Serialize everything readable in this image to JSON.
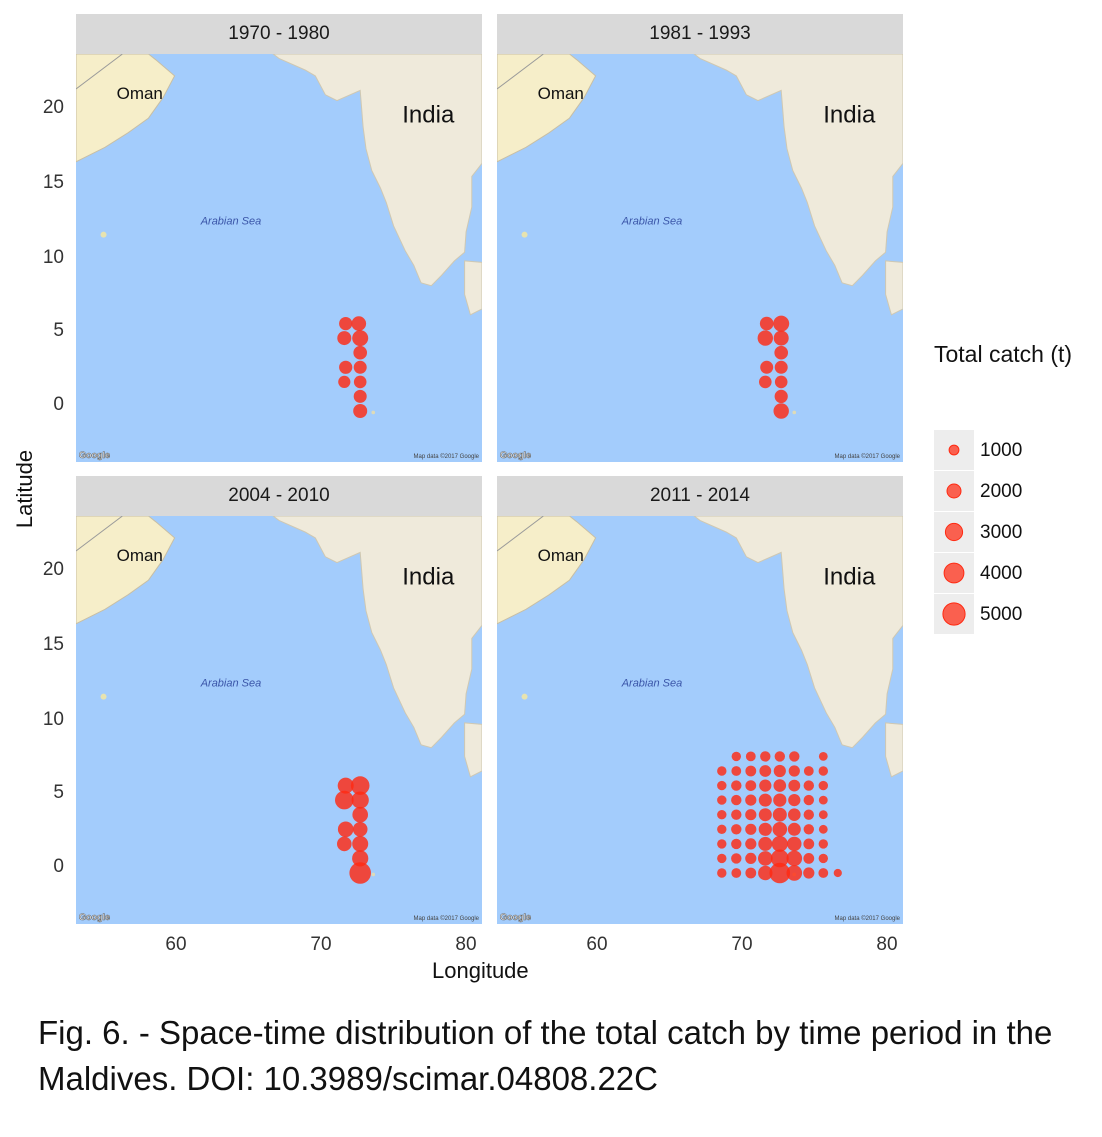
{
  "panels": [
    {
      "title": "1970 - 1980"
    },
    {
      "title": "1981 - 1993"
    },
    {
      "title": "2004 - 2010"
    },
    {
      "title": "2011 - 2014"
    }
  ],
  "map_labels": {
    "oman": "Oman",
    "india": "India",
    "arabian_sea": "Arabian Sea",
    "google": "Google",
    "map_data": "Map data ©2017 Google"
  },
  "y_ticks": [
    "20",
    "15",
    "10",
    "5",
    "0"
  ],
  "x_ticks": [
    "60",
    "70",
    "80"
  ],
  "axes": {
    "x_title": "Longitude",
    "y_title": "Latitude"
  },
  "legend": {
    "title": "Total catch (t)",
    "items": [
      {
        "label": "1000",
        "value": 1000
      },
      {
        "label": "2000",
        "value": 2000
      },
      {
        "label": "3000",
        "value": 3000
      },
      {
        "label": "4000",
        "value": 4000
      },
      {
        "label": "5000",
        "value": 5000
      }
    ]
  },
  "caption": "Fig. 6. - Space-time distribution of the total catch by time period in the Maldives. DOI: 10.3989/scimar.04808.22C",
  "colors": {
    "water": "#a3ccfc",
    "land": "#efeadb",
    "desert": "#f6eec9",
    "point": "#ff2a12",
    "strip": "#d9d9d9"
  },
  "chart_data": {
    "type": "scatter",
    "xlim": [
      53,
      81
    ],
    "ylim": [
      -4,
      24
    ],
    "xlabel": "Longitude",
    "ylabel": "Latitude",
    "size_variable": "Total catch (t)",
    "series": [
      {
        "name": "1970 - 1980",
        "points": [
          {
            "x": 71.6,
            "y": 5.5,
            "v": 1800
          },
          {
            "x": 72.5,
            "y": 5.5,
            "v": 2200
          },
          {
            "x": 71.5,
            "y": 4.5,
            "v": 2000
          },
          {
            "x": 72.6,
            "y": 4.5,
            "v": 2600
          },
          {
            "x": 72.6,
            "y": 3.5,
            "v": 1900
          },
          {
            "x": 71.6,
            "y": 2.5,
            "v": 1800
          },
          {
            "x": 72.6,
            "y": 2.5,
            "v": 1700
          },
          {
            "x": 71.5,
            "y": 1.5,
            "v": 1500
          },
          {
            "x": 72.6,
            "y": 1.5,
            "v": 1600
          },
          {
            "x": 72.6,
            "y": 0.5,
            "v": 1700
          },
          {
            "x": 72.6,
            "y": -0.5,
            "v": 2000
          }
        ]
      },
      {
        "name": "1981 - 1993",
        "points": [
          {
            "x": 71.6,
            "y": 5.5,
            "v": 1900
          },
          {
            "x": 72.6,
            "y": 5.5,
            "v": 2600
          },
          {
            "x": 71.5,
            "y": 4.5,
            "v": 2400
          },
          {
            "x": 72.6,
            "y": 4.5,
            "v": 2300
          },
          {
            "x": 72.6,
            "y": 3.5,
            "v": 1900
          },
          {
            "x": 71.6,
            "y": 2.5,
            "v": 1700
          },
          {
            "x": 72.6,
            "y": 2.5,
            "v": 1700
          },
          {
            "x": 71.5,
            "y": 1.5,
            "v": 1600
          },
          {
            "x": 72.6,
            "y": 1.5,
            "v": 1600
          },
          {
            "x": 72.6,
            "y": 0.5,
            "v": 1800
          },
          {
            "x": 72.6,
            "y": -0.5,
            "v": 2400
          }
        ]
      },
      {
        "name": "2004 - 2010",
        "points": [
          {
            "x": 71.6,
            "y": 5.5,
            "v": 2600
          },
          {
            "x": 72.6,
            "y": 5.5,
            "v": 3500
          },
          {
            "x": 71.5,
            "y": 4.5,
            "v": 3500
          },
          {
            "x": 72.6,
            "y": 4.5,
            "v": 3000
          },
          {
            "x": 72.6,
            "y": 3.5,
            "v": 2500
          },
          {
            "x": 71.6,
            "y": 2.5,
            "v": 2500
          },
          {
            "x": 72.6,
            "y": 2.5,
            "v": 2200
          },
          {
            "x": 71.5,
            "y": 1.5,
            "v": 2200
          },
          {
            "x": 72.6,
            "y": 1.5,
            "v": 2600
          },
          {
            "x": 72.6,
            "y": 0.5,
            "v": 2700
          },
          {
            "x": 72.6,
            "y": -0.5,
            "v": 4800
          }
        ]
      },
      {
        "name": "2011 - 2014",
        "points": [
          {
            "x": 69.5,
            "y": 7.5,
            "v": 900
          },
          {
            "x": 70.5,
            "y": 7.5,
            "v": 1000
          },
          {
            "x": 71.5,
            "y": 7.5,
            "v": 1100
          },
          {
            "x": 72.5,
            "y": 7.5,
            "v": 1100
          },
          {
            "x": 73.5,
            "y": 7.5,
            "v": 1100
          },
          {
            "x": 75.5,
            "y": 7.5,
            "v": 800
          },
          {
            "x": 68.5,
            "y": 6.5,
            "v": 900
          },
          {
            "x": 69.5,
            "y": 6.5,
            "v": 1000
          },
          {
            "x": 70.5,
            "y": 6.5,
            "v": 1200
          },
          {
            "x": 71.5,
            "y": 6.5,
            "v": 1400
          },
          {
            "x": 72.5,
            "y": 6.5,
            "v": 1500
          },
          {
            "x": 73.5,
            "y": 6.5,
            "v": 1300
          },
          {
            "x": 74.5,
            "y": 6.5,
            "v": 1000
          },
          {
            "x": 75.5,
            "y": 6.5,
            "v": 900
          },
          {
            "x": 68.5,
            "y": 5.5,
            "v": 900
          },
          {
            "x": 69.5,
            "y": 5.5,
            "v": 1100
          },
          {
            "x": 70.5,
            "y": 5.5,
            "v": 1200
          },
          {
            "x": 71.5,
            "y": 5.5,
            "v": 1500
          },
          {
            "x": 72.5,
            "y": 5.5,
            "v": 1600
          },
          {
            "x": 73.5,
            "y": 5.5,
            "v": 1400
          },
          {
            "x": 74.5,
            "y": 5.5,
            "v": 1100
          },
          {
            "x": 75.5,
            "y": 5.5,
            "v": 900
          },
          {
            "x": 68.5,
            "y": 4.5,
            "v": 900
          },
          {
            "x": 69.5,
            "y": 4.5,
            "v": 1100
          },
          {
            "x": 70.5,
            "y": 4.5,
            "v": 1300
          },
          {
            "x": 71.5,
            "y": 4.5,
            "v": 1700
          },
          {
            "x": 72.5,
            "y": 4.5,
            "v": 1800
          },
          {
            "x": 73.5,
            "y": 4.5,
            "v": 1500
          },
          {
            "x": 74.5,
            "y": 4.5,
            "v": 1100
          },
          {
            "x": 75.5,
            "y": 4.5,
            "v": 800
          },
          {
            "x": 68.5,
            "y": 3.5,
            "v": 900
          },
          {
            "x": 69.5,
            "y": 3.5,
            "v": 1100
          },
          {
            "x": 70.5,
            "y": 3.5,
            "v": 1300
          },
          {
            "x": 71.5,
            "y": 3.5,
            "v": 1700
          },
          {
            "x": 72.5,
            "y": 3.5,
            "v": 2000
          },
          {
            "x": 73.5,
            "y": 3.5,
            "v": 1600
          },
          {
            "x": 74.5,
            "y": 3.5,
            "v": 1100
          },
          {
            "x": 75.5,
            "y": 3.5,
            "v": 800
          },
          {
            "x": 68.5,
            "y": 2.5,
            "v": 900
          },
          {
            "x": 69.5,
            "y": 2.5,
            "v": 1100
          },
          {
            "x": 70.5,
            "y": 2.5,
            "v": 1300
          },
          {
            "x": 71.5,
            "y": 2.5,
            "v": 1800
          },
          {
            "x": 72.5,
            "y": 2.5,
            "v": 2200
          },
          {
            "x": 73.5,
            "y": 2.5,
            "v": 1700
          },
          {
            "x": 74.5,
            "y": 2.5,
            "v": 1100
          },
          {
            "x": 75.5,
            "y": 2.5,
            "v": 800
          },
          {
            "x": 68.5,
            "y": 1.5,
            "v": 900
          },
          {
            "x": 69.5,
            "y": 1.5,
            "v": 1100
          },
          {
            "x": 70.5,
            "y": 1.5,
            "v": 1300
          },
          {
            "x": 71.5,
            "y": 1.5,
            "v": 2000
          },
          {
            "x": 72.5,
            "y": 1.5,
            "v": 2600
          },
          {
            "x": 73.5,
            "y": 1.5,
            "v": 2100
          },
          {
            "x": 74.5,
            "y": 1.5,
            "v": 1200
          },
          {
            "x": 75.5,
            "y": 1.5,
            "v": 900
          },
          {
            "x": 68.5,
            "y": 0.5,
            "v": 900
          },
          {
            "x": 69.5,
            "y": 0.5,
            "v": 1100
          },
          {
            "x": 70.5,
            "y": 0.5,
            "v": 1300
          },
          {
            "x": 71.5,
            "y": 0.5,
            "v": 2200
          },
          {
            "x": 72.5,
            "y": 0.5,
            "v": 3200
          },
          {
            "x": 73.5,
            "y": 0.5,
            "v": 2500
          },
          {
            "x": 74.5,
            "y": 0.5,
            "v": 1200
          },
          {
            "x": 75.5,
            "y": 0.5,
            "v": 900
          },
          {
            "x": 68.5,
            "y": -0.5,
            "v": 900
          },
          {
            "x": 69.5,
            "y": -0.5,
            "v": 1000
          },
          {
            "x": 70.5,
            "y": -0.5,
            "v": 1200
          },
          {
            "x": 71.5,
            "y": -0.5,
            "v": 2100
          },
          {
            "x": 72.5,
            "y": -0.5,
            "v": 4300
          },
          {
            "x": 73.5,
            "y": -0.5,
            "v": 2500
          },
          {
            "x": 74.5,
            "y": -0.5,
            "v": 1300
          },
          {
            "x": 75.5,
            "y": -0.5,
            "v": 1000
          },
          {
            "x": 76.5,
            "y": -0.5,
            "v": 700
          }
        ]
      }
    ],
    "legend_position": "right"
  }
}
